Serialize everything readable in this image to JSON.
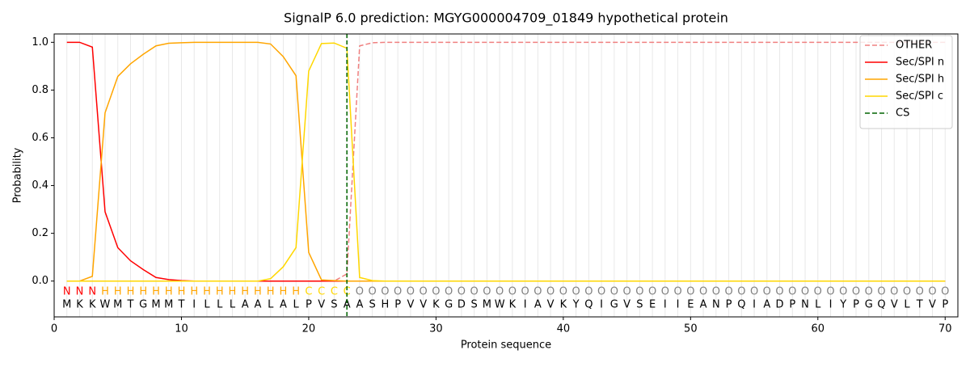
{
  "chart_data": {
    "type": "line",
    "title": "SignalP 6.0 prediction: MGYG000004709_01849 hypothetical protein",
    "x_label": "Protein sequence",
    "y_label": "Probability",
    "xlim": [
      0,
      71
    ],
    "ylim": [
      -0.15,
      1.035
    ],
    "xticks": [
      0,
      10,
      20,
      30,
      40,
      50,
      60,
      70
    ],
    "yticks": [
      {
        "value": 0,
        "label": "0.0"
      },
      {
        "value": 0.2,
        "label": "0.2"
      },
      {
        "value": 0.4,
        "label": "0.4"
      },
      {
        "value": 0.6,
        "label": "0.6"
      },
      {
        "value": 0.8,
        "label": "0.8"
      },
      {
        "value": 1.0,
        "label": "1.0"
      }
    ],
    "legend": "upper right",
    "x": [
      1,
      2,
      3,
      4,
      5,
      6,
      7,
      8,
      9,
      10,
      11,
      12,
      13,
      14,
      15,
      16,
      17,
      18,
      19,
      20,
      21,
      22,
      23,
      24,
      25,
      26,
      27,
      28,
      29,
      30,
      31,
      32,
      33,
      34,
      35,
      36,
      37,
      38,
      39,
      40,
      41,
      42,
      43,
      44,
      45,
      46,
      47,
      48,
      49,
      50,
      51,
      52,
      53,
      54,
      55,
      56,
      57,
      58,
      59,
      60,
      61,
      62,
      63,
      64,
      65,
      66,
      67,
      68,
      69,
      70
    ],
    "series": [
      {
        "name": "OTHER",
        "color": "#f08080",
        "dashed": true,
        "values": [
          0,
          0,
          0,
          0,
          0,
          0,
          0,
          0,
          0,
          0,
          0,
          0,
          0,
          0,
          0,
          0,
          0,
          0,
          0,
          0,
          0,
          0,
          0.03,
          0.985,
          0.998,
          1,
          1,
          1,
          1,
          1,
          1,
          1,
          1,
          1,
          1,
          1,
          1,
          1,
          1,
          1,
          1,
          1,
          1,
          1,
          1,
          1,
          1,
          1,
          1,
          1,
          1,
          1,
          1,
          1,
          1,
          1,
          1,
          1,
          1,
          1,
          1,
          1,
          1,
          1,
          1,
          1,
          1,
          1,
          1,
          1
        ]
      },
      {
        "name": "Sec/SPI n",
        "color": "#ff0000",
        "values": [
          1.0,
          1.0,
          0.98,
          0.29,
          0.14,
          0.085,
          0.048,
          0.015,
          0.006,
          0.002,
          0,
          0,
          0,
          0,
          0,
          0,
          0,
          0,
          0,
          0,
          0,
          0,
          0,
          0,
          0,
          0,
          0,
          0,
          0,
          0,
          0,
          0,
          0,
          0,
          0,
          0,
          0,
          0,
          0,
          0,
          0,
          0,
          0,
          0,
          0,
          0,
          0,
          0,
          0,
          0,
          0,
          0,
          0,
          0,
          0,
          0,
          0,
          0,
          0,
          0,
          0,
          0,
          0,
          0,
          0,
          0,
          0,
          0,
          0,
          0
        ]
      },
      {
        "name": "Sec/SPI h",
        "color": "#ffa500",
        "values": [
          0,
          0,
          0.02,
          0.705,
          0.857,
          0.91,
          0.95,
          0.985,
          0.996,
          0.998,
          1,
          1,
          1,
          1,
          1,
          1,
          0.993,
          0.94,
          0.86,
          0.12,
          0.005,
          0.002,
          0,
          0,
          0,
          0,
          0,
          0,
          0,
          0,
          0,
          0,
          0,
          0,
          0,
          0,
          0,
          0,
          0,
          0,
          0,
          0,
          0,
          0,
          0,
          0,
          0,
          0,
          0,
          0,
          0,
          0,
          0,
          0,
          0,
          0,
          0,
          0,
          0,
          0,
          0,
          0,
          0,
          0,
          0,
          0,
          0,
          0,
          0,
          0
        ]
      },
      {
        "name": "Sec/SPI c",
        "color": "#ffd700",
        "values": [
          0,
          0,
          0,
          0,
          0,
          0,
          0,
          0,
          0,
          0,
          0,
          0,
          0,
          0,
          0,
          0,
          0.01,
          0.06,
          0.14,
          0.88,
          0.995,
          0.997,
          0.975,
          0.015,
          0.002,
          0,
          0,
          0,
          0,
          0,
          0,
          0,
          0,
          0,
          0,
          0,
          0,
          0,
          0,
          0,
          0,
          0,
          0,
          0,
          0,
          0,
          0,
          0,
          0,
          0,
          0,
          0,
          0,
          0,
          0,
          0,
          0,
          0,
          0,
          0,
          0,
          0,
          0,
          0,
          0,
          0,
          0,
          0,
          0,
          0
        ]
      }
    ],
    "cs": {
      "name": "CS",
      "x": 23,
      "color": "#006400"
    },
    "regions": [
      "N",
      "N",
      "N",
      "H",
      "H",
      "H",
      "H",
      "H",
      "H",
      "H",
      "H",
      "H",
      "H",
      "H",
      "H",
      "H",
      "H",
      "H",
      "H",
      "C",
      "C",
      "C",
      "C",
      "O",
      "O",
      "O",
      "O",
      "O",
      "O",
      "O",
      "O",
      "O",
      "O",
      "O",
      "O",
      "O",
      "O",
      "O",
      "O",
      "O",
      "O",
      "O",
      "O",
      "O",
      "O",
      "O",
      "O",
      "O",
      "O",
      "O",
      "O",
      "O",
      "O",
      "O",
      "O",
      "O",
      "O",
      "O",
      "O",
      "O",
      "O",
      "O",
      "O",
      "O",
      "O",
      "O",
      "O",
      "O",
      "O",
      "O"
    ],
    "region_colors": {
      "N": "#ff0000",
      "H": "#ffa500",
      "C": "#ffd700",
      "O": "#808080"
    },
    "sequence": [
      "M",
      "K",
      "K",
      "W",
      "M",
      "T",
      "G",
      "M",
      "M",
      "T",
      "I",
      "L",
      "L",
      "L",
      "A",
      "A",
      "L",
      "A",
      "L",
      "P",
      "V",
      "S",
      "A",
      "A",
      "S",
      "H",
      "P",
      "V",
      "V",
      "K",
      "G",
      "D",
      "S",
      "M",
      "W",
      "K",
      "I",
      "A",
      "V",
      "K",
      "Y",
      "Q",
      "I",
      "G",
      "V",
      "S",
      "E",
      "I",
      "I",
      "E",
      "A",
      "N",
      "P",
      "Q",
      "I",
      "A",
      "D",
      "P",
      "N",
      "L",
      "I",
      "Y",
      "P",
      "G",
      "Q",
      "V",
      "L",
      "T",
      "V",
      "P"
    ]
  }
}
